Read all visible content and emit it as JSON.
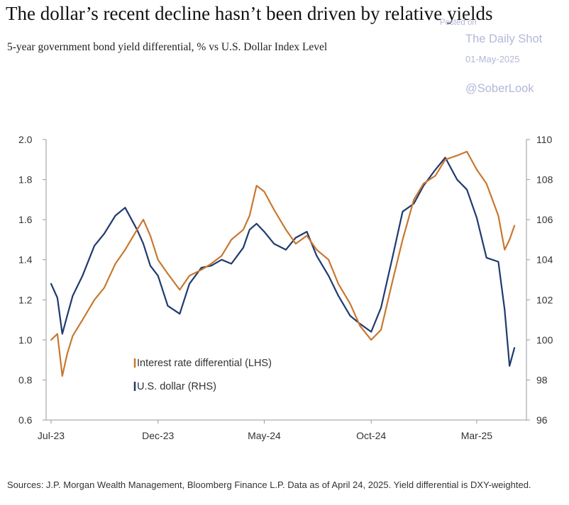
{
  "header": {
    "title": "The dollar’s recent decline hasn’t been driven by relative yields",
    "subtitle": "5-year government bond yield differential, % vs U.S. Dollar Index Level"
  },
  "watermark": {
    "posted": "Posted on",
    "name": "The Daily Shot",
    "date": "01-May-2025",
    "handle": "@SoberLook"
  },
  "footer": {
    "source": "Sources: J.P. Morgan Wealth Management, Bloomberg Finance L.P. Data as of April 24, 2025. Yield differential is DXY-weighted."
  },
  "colors": {
    "differential": "#c8782f",
    "dollar": "#1f3a6e",
    "axis": "#999999"
  },
  "chart_data": {
    "type": "line",
    "x_ticks": [
      "Jul-23",
      "Dec-23",
      "May-24",
      "Oct-24",
      "Mar-25"
    ],
    "y_left_ticks": [
      "2.0",
      "1.8",
      "1.6",
      "1.4",
      "1.2",
      "1.0",
      "0.8",
      "0.6"
    ],
    "y_right_ticks": [
      "110",
      "108",
      "106",
      "104",
      "102",
      "100",
      "98",
      "96"
    ],
    "ylim_left": [
      0.6,
      2.0
    ],
    "ylim_right": [
      96,
      110
    ],
    "xlim": [
      "2023-07-01",
      "2025-05-01"
    ],
    "grid": false,
    "legend_position": "bottom-left",
    "series": [
      {
        "name": "Interest rate differential (LHS)",
        "axis": "left",
        "x": [
          "2023-07-01",
          "2023-07-10",
          "2023-07-17",
          "2023-07-24",
          "2023-08-01",
          "2023-08-15",
          "2023-09-01",
          "2023-09-15",
          "2023-10-01",
          "2023-10-15",
          "2023-11-01",
          "2023-11-10",
          "2023-11-20",
          "2023-12-01",
          "2023-12-15",
          "2024-01-01",
          "2024-01-15",
          "2024-02-01",
          "2024-02-15",
          "2024-03-01",
          "2024-03-15",
          "2024-04-01",
          "2024-04-10",
          "2024-04-20",
          "2024-05-01",
          "2024-05-15",
          "2024-06-01",
          "2024-06-15",
          "2024-07-01",
          "2024-07-15",
          "2024-08-01",
          "2024-08-15",
          "2024-09-01",
          "2024-09-15",
          "2024-10-01",
          "2024-10-15",
          "2024-11-01",
          "2024-11-15",
          "2024-12-01",
          "2024-12-15",
          "2025-01-01",
          "2025-01-15",
          "2025-02-01",
          "2025-02-15",
          "2025-03-01",
          "2025-03-15",
          "2025-04-01",
          "2025-04-10",
          "2025-04-17",
          "2025-04-24"
        ],
        "values": [
          1.0,
          1.03,
          0.82,
          0.93,
          1.02,
          1.1,
          1.2,
          1.26,
          1.38,
          1.45,
          1.55,
          1.6,
          1.52,
          1.4,
          1.33,
          1.25,
          1.32,
          1.35,
          1.38,
          1.42,
          1.5,
          1.55,
          1.62,
          1.77,
          1.74,
          1.65,
          1.55,
          1.48,
          1.52,
          1.45,
          1.4,
          1.28,
          1.18,
          1.07,
          1.0,
          1.05,
          1.3,
          1.5,
          1.7,
          1.78,
          1.82,
          1.9,
          1.92,
          1.94,
          1.85,
          1.78,
          1.62,
          1.45,
          1.5,
          1.57
        ]
      },
      {
        "name": "U.S. dollar (RHS)",
        "axis": "right",
        "x": [
          "2023-07-01",
          "2023-07-10",
          "2023-07-17",
          "2023-07-24",
          "2023-08-01",
          "2023-08-15",
          "2023-09-01",
          "2023-09-15",
          "2023-10-01",
          "2023-10-15",
          "2023-11-01",
          "2023-11-10",
          "2023-11-20",
          "2023-12-01",
          "2023-12-15",
          "2024-01-01",
          "2024-01-15",
          "2024-02-01",
          "2024-02-15",
          "2024-03-01",
          "2024-03-15",
          "2024-04-01",
          "2024-04-10",
          "2024-04-20",
          "2024-05-01",
          "2024-05-15",
          "2024-06-01",
          "2024-06-15",
          "2024-07-01",
          "2024-07-15",
          "2024-08-01",
          "2024-08-15",
          "2024-09-01",
          "2024-09-15",
          "2024-10-01",
          "2024-10-15",
          "2024-11-01",
          "2024-11-15",
          "2024-12-01",
          "2024-12-15",
          "2025-01-01",
          "2025-01-15",
          "2025-02-01",
          "2025-02-15",
          "2025-03-01",
          "2025-03-15",
          "2025-04-01",
          "2025-04-10",
          "2025-04-17",
          "2025-04-24"
        ],
        "values": [
          102.8,
          102.1,
          100.3,
          101.2,
          102.2,
          103.2,
          104.7,
          105.3,
          106.2,
          106.6,
          105.5,
          104.8,
          103.7,
          103.2,
          101.7,
          101.3,
          102.8,
          103.6,
          103.7,
          104.0,
          103.8,
          104.6,
          105.5,
          105.8,
          105.4,
          104.8,
          104.5,
          105.1,
          105.4,
          104.2,
          103.2,
          102.2,
          101.2,
          100.8,
          100.4,
          101.6,
          104.2,
          106.4,
          106.8,
          107.7,
          108.5,
          109.1,
          108.0,
          107.5,
          106.1,
          104.1,
          103.9,
          101.5,
          98.7,
          99.6
        ]
      }
    ]
  }
}
